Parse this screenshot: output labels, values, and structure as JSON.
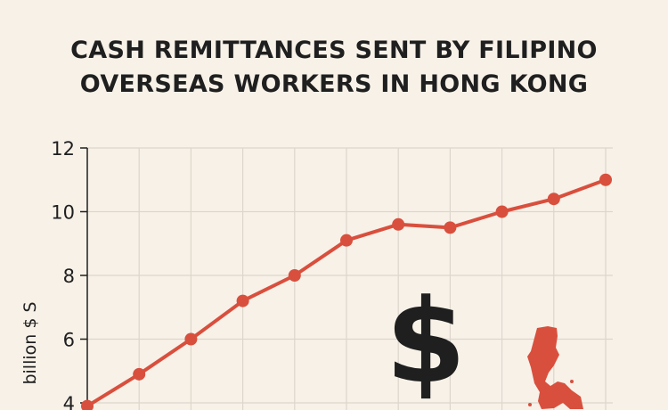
{
  "chart_data": {
    "type": "line",
    "title_lines": [
      "CASH REMITTANCES SENT BY FILIPINO",
      "OVERSEAS WORKERS IN HONG KONG"
    ],
    "xlabel": "",
    "ylabel": "billion $ S",
    "ylim": [
      4,
      12
    ],
    "yticks": [
      "4",
      "6",
      "8",
      "10",
      "12"
    ],
    "grid": true,
    "series": [
      {
        "values": [
          3.9,
          4.9,
          6.0,
          7.2,
          8.0,
          9.1,
          9.6,
          9.5,
          10.0,
          10.4,
          11.0
        ]
      }
    ],
    "colors": {
      "line": "#d94f3d",
      "background": "#f7f1e8",
      "grid": "#dcd6cc",
      "text": "#1f1f1f"
    },
    "decorations": {
      "dollar_sign": "$",
      "map": "philippines-map-icon"
    }
  }
}
